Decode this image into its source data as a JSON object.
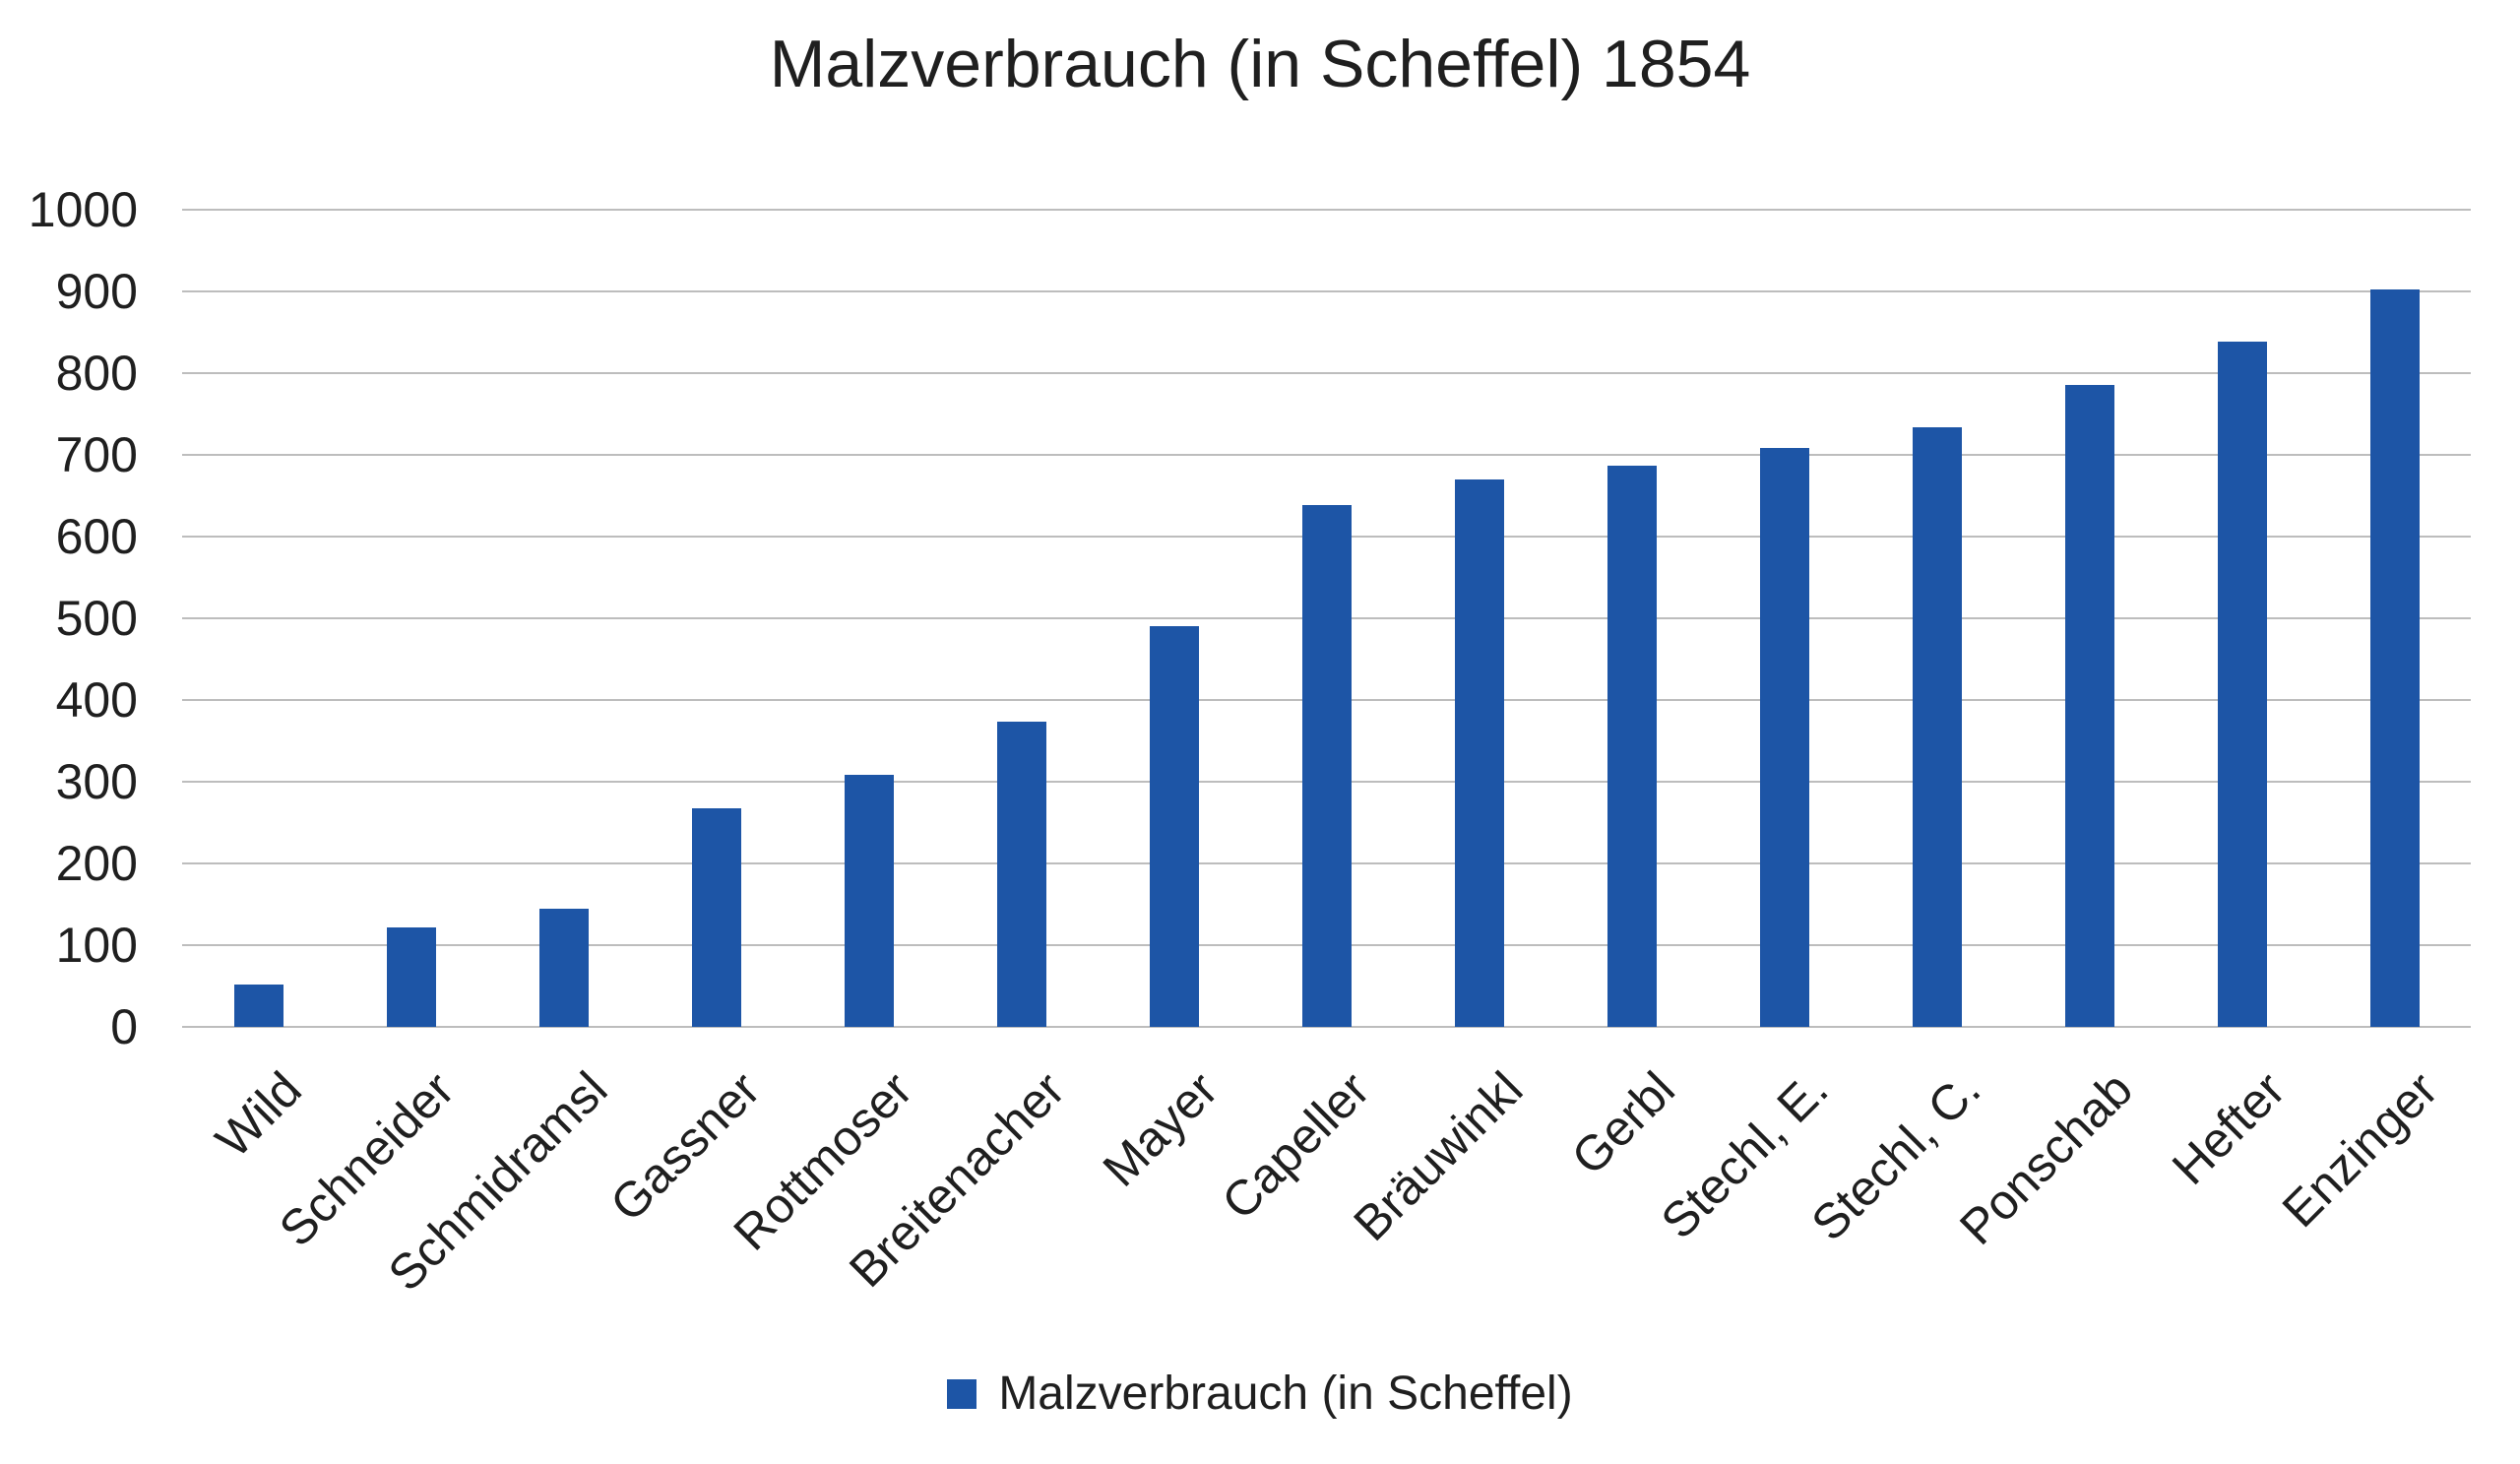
{
  "title": "Malzverbrauch (in Scheffel) 1854",
  "legend": {
    "label": "Malzverbrauch (in Scheffel)"
  },
  "colors": {
    "bar": "#1d55a6",
    "gridline": "#bdbdbd",
    "text": "#1f1f1f",
    "background": "#ffffff"
  },
  "chart_data": {
    "type": "bar",
    "title": "Malzverbrauch (in Scheffel) 1854",
    "series_name": "Malzverbrauch (in Scheffel)",
    "categories": [
      "Wild",
      "Schneider",
      "Schmidramsl",
      "Gassner",
      "Rottmoser",
      "Breitenacher",
      "Mayer",
      "Capeller",
      "Bräuwinkl",
      "Gerbl",
      "Stechl, E.",
      "Stechl, C.",
      "Ponschab",
      "Hefter",
      "Enzinger"
    ],
    "values": [
      52,
      122,
      145,
      268,
      308,
      373,
      490,
      638,
      670,
      687,
      708,
      734,
      785,
      838,
      903
    ],
    "xlabel": "",
    "ylabel": "",
    "ylim": [
      0,
      1000
    ],
    "yticks": [
      0,
      100,
      200,
      300,
      400,
      500,
      600,
      700,
      800,
      900,
      1000
    ],
    "grid": true,
    "legend_position": "bottom"
  }
}
